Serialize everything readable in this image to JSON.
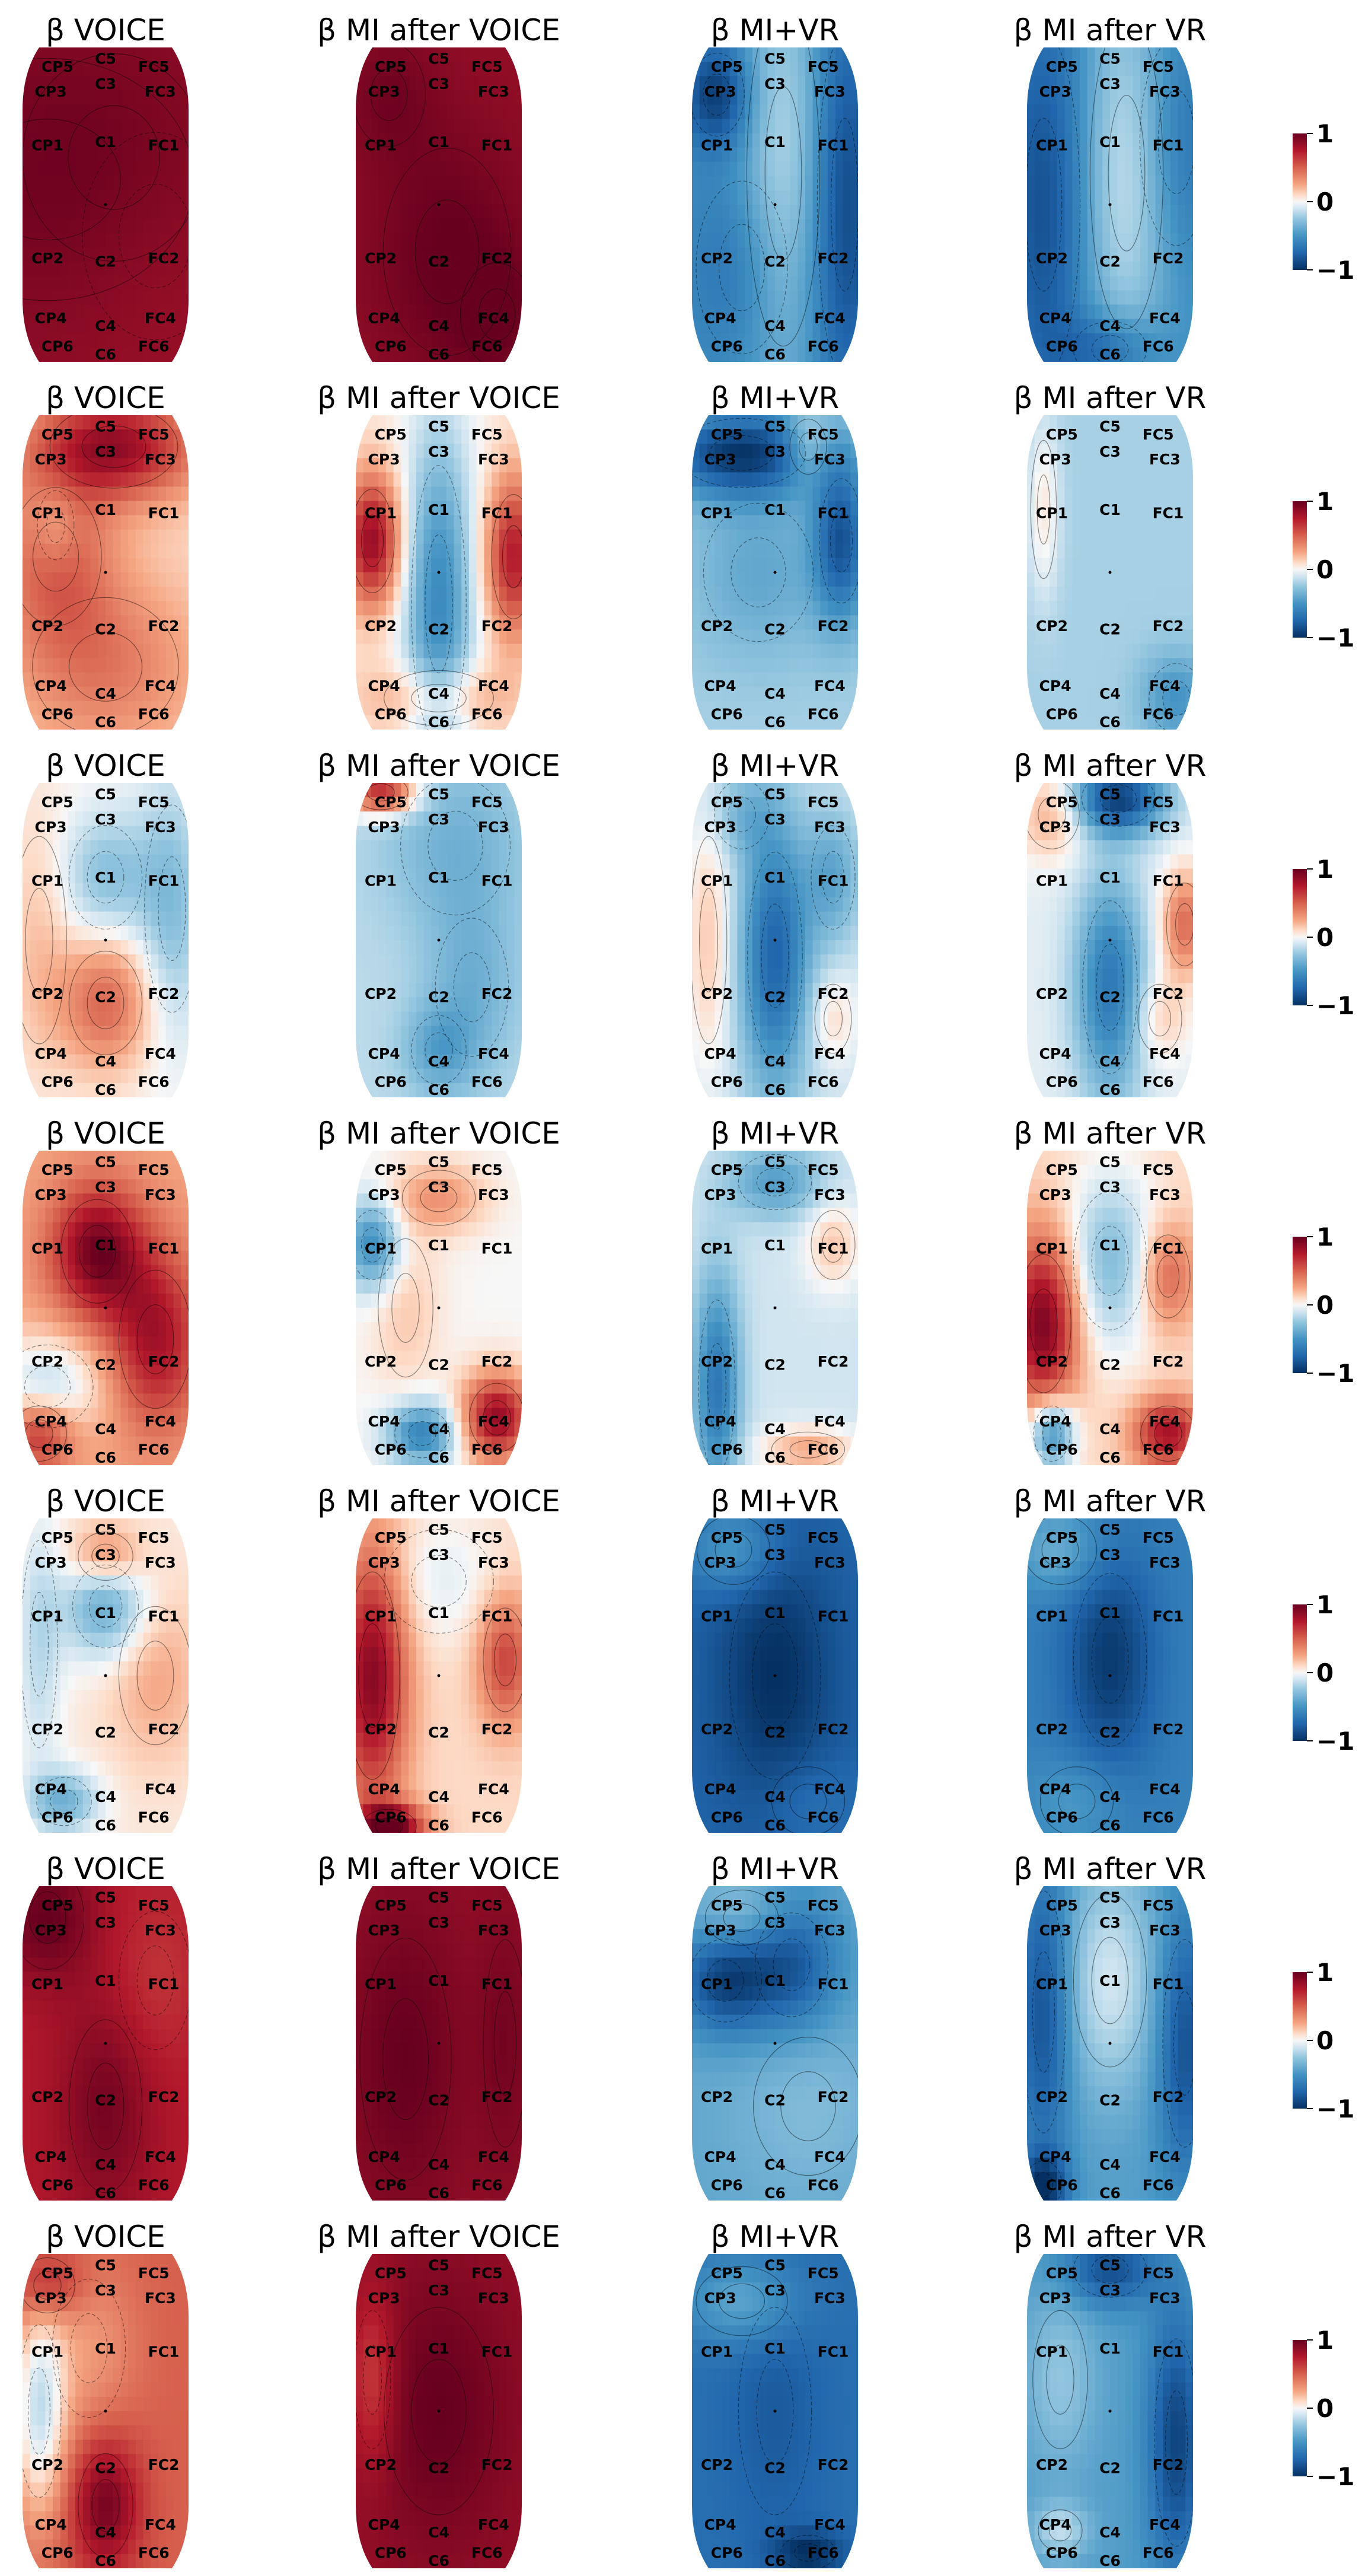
{
  "chart_data": {
    "type": "heatmap",
    "panel_titles": [
      "β VOICE",
      "β MI after VOICE",
      "β MI+VR",
      "β MI after VR"
    ],
    "rows": 7,
    "colorbar": {
      "colormap": "RdBu_r",
      "range": [
        -1,
        1
      ],
      "ticks": [
        "1",
        "0",
        "−1"
      ]
    },
    "electrodes": [
      {
        "label": "CP5",
        "u": 0.21,
        "v": 0.06
      },
      {
        "label": "C5",
        "u": 0.5,
        "v": 0.035
      },
      {
        "label": "FC5",
        "u": 0.79,
        "v": 0.06
      },
      {
        "label": "CP3",
        "u": 0.17,
        "v": 0.14
      },
      {
        "label": "C3",
        "u": 0.5,
        "v": 0.115
      },
      {
        "label": "FC3",
        "u": 0.83,
        "v": 0.14
      },
      {
        "label": "CP1",
        "u": 0.15,
        "v": 0.31
      },
      {
        "label": "C1",
        "u": 0.5,
        "v": 0.3
      },
      {
        "label": "FC1",
        "u": 0.85,
        "v": 0.31
      },
      {
        "label": "CP2",
        "u": 0.15,
        "v": 0.67
      },
      {
        "label": "C2",
        "u": 0.5,
        "v": 0.68
      },
      {
        "label": "FC2",
        "u": 0.85,
        "v": 0.67
      },
      {
        "label": "CP4",
        "u": 0.17,
        "v": 0.86
      },
      {
        "label": "C4",
        "u": 0.5,
        "v": 0.885
      },
      {
        "label": "FC4",
        "u": 0.83,
        "v": 0.86
      },
      {
        "label": "CP6",
        "u": 0.21,
        "v": 0.95
      },
      {
        "label": "C6",
        "u": 0.5,
        "v": 0.975
      },
      {
        "label": "FC6",
        "u": 0.79,
        "v": 0.95
      }
    ],
    "maps": [
      [
        {
          "base": 0.85,
          "blobs": [
            [
              0.15,
              0.42,
              0.8,
              0.35,
              0.1
            ],
            [
              0.55,
              0.35,
              0.5,
              0.3,
              0.05
            ],
            [
              0.8,
              0.6,
              0.4,
              0.3,
              -0.05
            ]
          ]
        },
        {
          "base": 0.85,
          "blobs": [
            [
              0.55,
              0.65,
              0.35,
              0.3,
              0.15
            ],
            [
              0.2,
              0.15,
              0.2,
              0.15,
              0.1
            ],
            [
              0.85,
              0.85,
              0.2,
              0.15,
              0.1
            ]
          ]
        },
        {
          "base": -0.5,
          "blobs": [
            [
              0.15,
              0.15,
              0.15,
              0.12,
              -0.45
            ],
            [
              0.55,
              0.4,
              0.2,
              0.5,
              0.35
            ],
            [
              0.92,
              0.5,
              0.15,
              0.5,
              -0.4
            ],
            [
              0.3,
              0.7,
              0.25,
              0.25,
              -0.2
            ]
          ]
        },
        {
          "base": -0.5,
          "blobs": [
            [
              0.1,
              0.5,
              0.2,
              0.5,
              -0.35
            ],
            [
              0.6,
              0.4,
              0.2,
              0.45,
              0.4
            ],
            [
              0.9,
              0.3,
              0.2,
              0.3,
              -0.2
            ],
            [
              0.5,
              0.96,
              0.2,
              0.08,
              -0.3
            ]
          ]
        }
      ],
      [
        {
          "base": 0.1,
          "blobs": [
            [
              0.55,
              0.1,
              0.35,
              0.12,
              0.75
            ],
            [
              0.2,
              0.45,
              0.25,
              0.2,
              0.4
            ],
            [
              0.5,
              0.8,
              0.4,
              0.2,
              0.3
            ],
            [
              0.2,
              0.35,
              0.1,
              0.1,
              -0.2
            ]
          ]
        },
        {
          "base": 0.05,
          "blobs": [
            [
              0.1,
              0.4,
              0.12,
              0.15,
              0.8
            ],
            [
              0.95,
              0.45,
              0.12,
              0.18,
              0.7
            ],
            [
              0.5,
              0.6,
              0.15,
              0.4,
              -0.6
            ],
            [
              0.5,
              0.9,
              0.3,
              0.08,
              0.3
            ]
          ]
        },
        {
          "base": -0.2,
          "blobs": [
            [
              0.3,
              0.12,
              0.35,
              0.1,
              -0.75
            ],
            [
              0.9,
              0.4,
              0.12,
              0.18,
              -0.6
            ],
            [
              0.4,
              0.5,
              0.3,
              0.2,
              -0.2
            ],
            [
              0.7,
              0.1,
              0.1,
              0.08,
              0.3
            ]
          ]
        },
        {
          "base": -0.2,
          "blobs": [
            [
              0.1,
              0.3,
              0.07,
              0.2,
              0.25
            ],
            [
              0.9,
              0.9,
              0.15,
              0.1,
              -0.3
            ]
          ]
        }
      ],
      [
        {
          "base": 0.02,
          "blobs": [
            [
              0.5,
              0.7,
              0.2,
              0.15,
              0.45
            ],
            [
              0.5,
              0.3,
              0.2,
              0.15,
              -0.3
            ],
            [
              0.9,
              0.4,
              0.15,
              0.3,
              -0.3
            ],
            [
              0.1,
              0.5,
              0.15,
              0.3,
              0.15
            ]
          ]
        },
        {
          "base": -0.15,
          "blobs": [
            [
              0.15,
              0.03,
              0.15,
              0.05,
              0.85
            ],
            [
              0.6,
              0.2,
              0.3,
              0.2,
              -0.2
            ],
            [
              0.7,
              0.65,
              0.2,
              0.2,
              -0.2
            ],
            [
              0.5,
              0.85,
              0.15,
              0.1,
              -0.25
            ]
          ]
        },
        {
          "base": -0.1,
          "blobs": [
            [
              0.5,
              0.55,
              0.15,
              0.3,
              -0.65
            ],
            [
              0.85,
              0.3,
              0.12,
              0.15,
              -0.3
            ],
            [
              0.1,
              0.5,
              0.1,
              0.3,
              0.25
            ],
            [
              0.3,
              0.1,
              0.15,
              0.1,
              -0.2
            ],
            [
              0.85,
              0.75,
              0.1,
              0.1,
              0.2
            ]
          ]
        },
        {
          "base": -0.05,
          "blobs": [
            [
              0.55,
              0.05,
              0.2,
              0.08,
              -0.85
            ],
            [
              0.5,
              0.65,
              0.15,
              0.25,
              -0.6
            ],
            [
              0.95,
              0.45,
              0.1,
              0.12,
              0.5
            ],
            [
              0.15,
              0.1,
              0.15,
              0.1,
              0.3
            ],
            [
              0.8,
              0.75,
              0.12,
              0.1,
              0.2
            ]
          ]
        }
      ],
      [
        {
          "base": 0.25,
          "blobs": [
            [
              0.45,
              0.32,
              0.2,
              0.15,
              0.7
            ],
            [
              0.8,
              0.6,
              0.2,
              0.2,
              0.55
            ],
            [
              0.15,
              0.75,
              0.25,
              0.12,
              -0.4
            ],
            [
              0.1,
              0.9,
              0.15,
              0.08,
              0.5
            ]
          ]
        },
        {
          "base": 0.0,
          "blobs": [
            [
              0.1,
              0.3,
              0.12,
              0.1,
              -0.55
            ],
            [
              0.85,
              0.85,
              0.15,
              0.1,
              0.85
            ],
            [
              0.4,
              0.9,
              0.15,
              0.07,
              -0.6
            ],
            [
              0.5,
              0.15,
              0.2,
              0.08,
              0.3
            ],
            [
              0.3,
              0.5,
              0.15,
              0.2,
              0.15
            ]
          ]
        },
        {
          "base": -0.1,
          "blobs": [
            [
              0.15,
              0.75,
              0.1,
              0.25,
              -0.55
            ],
            [
              0.5,
              0.1,
              0.2,
              0.08,
              -0.35
            ],
            [
              0.7,
              0.95,
              0.2,
              0.05,
              0.35
            ],
            [
              0.85,
              0.3,
              0.12,
              0.1,
              0.25
            ]
          ]
        },
        {
          "base": 0.1,
          "blobs": [
            [
              0.1,
              0.55,
              0.15,
              0.2,
              0.85
            ],
            [
              0.5,
              0.35,
              0.2,
              0.2,
              -0.4
            ],
            [
              0.15,
              0.9,
              0.1,
              0.08,
              -0.7
            ],
            [
              0.85,
              0.9,
              0.15,
              0.08,
              0.7
            ],
            [
              0.85,
              0.4,
              0.12,
              0.12,
              0.4
            ]
          ]
        }
      ],
      [
        {
          "base": 0.05,
          "blobs": [
            [
              0.5,
              0.28,
              0.18,
              0.12,
              -0.45
            ],
            [
              0.25,
              0.9,
              0.15,
              0.07,
              -0.4
            ],
            [
              0.5,
              0.12,
              0.15,
              0.07,
              0.35
            ],
            [
              0.8,
              0.5,
              0.2,
              0.2,
              0.2
            ],
            [
              0.1,
              0.4,
              0.1,
              0.3,
              -0.2
            ]
          ]
        },
        {
          "base": 0.1,
          "blobs": [
            [
              0.1,
              0.5,
              0.15,
              0.3,
              0.8
            ],
            [
              0.9,
              0.45,
              0.12,
              0.15,
              0.5
            ],
            [
              0.2,
              0.98,
              0.15,
              0.05,
              0.9
            ],
            [
              0.5,
              0.2,
              0.3,
              0.15,
              -0.15
            ]
          ]
        },
        {
          "base": -0.75,
          "blobs": [
            [
              0.5,
              0.5,
              0.25,
              0.3,
              -0.25
            ],
            [
              0.25,
              0.1,
              0.2,
              0.1,
              0.3
            ],
            [
              0.7,
              0.9,
              0.2,
              0.1,
              0.1
            ]
          ]
        },
        {
          "base": -0.6,
          "blobs": [
            [
              0.5,
              0.45,
              0.2,
              0.25,
              -0.35
            ],
            [
              0.2,
              0.1,
              0.2,
              0.1,
              0.25
            ],
            [
              0.3,
              0.9,
              0.2,
              0.1,
              0.15
            ]
          ]
        }
      ],
      [
        {
          "base": 0.75,
          "blobs": [
            [
              0.5,
              0.7,
              0.2,
              0.25,
              0.2
            ],
            [
              0.15,
              0.1,
              0.2,
              0.15,
              0.25
            ],
            [
              0.8,
              0.3,
              0.2,
              0.2,
              -0.1
            ]
          ]
        },
        {
          "base": 0.85,
          "blobs": [
            [
              0.3,
              0.55,
              0.25,
              0.35,
              0.15
            ],
            [
              0.9,
              0.5,
              0.12,
              0.3,
              0.1
            ]
          ]
        },
        {
          "base": -0.4,
          "blobs": [
            [
              0.2,
              0.3,
              0.2,
              0.12,
              -0.5
            ],
            [
              0.6,
              0.25,
              0.2,
              0.15,
              -0.4
            ],
            [
              0.3,
              0.1,
              0.2,
              0.08,
              0.2
            ],
            [
              0.7,
              0.7,
              0.3,
              0.2,
              0.1
            ]
          ]
        },
        {
          "base": -0.45,
          "blobs": [
            [
              0.1,
              0.4,
              0.12,
              0.35,
              -0.4
            ],
            [
              0.95,
              0.5,
              0.12,
              0.3,
              -0.4
            ],
            [
              0.5,
              0.3,
              0.2,
              0.25,
              0.35
            ],
            [
              0.1,
              0.95,
              0.1,
              0.07,
              -0.5
            ]
          ]
        }
      ],
      [
        {
          "base": 0.5,
          "blobs": [
            [
              0.1,
              0.5,
              0.12,
              0.25,
              -0.6
            ],
            [
              0.5,
              0.8,
              0.15,
              0.15,
              0.45
            ],
            [
              0.4,
              0.3,
              0.2,
              0.2,
              -0.2
            ],
            [
              0.15,
              0.1,
              0.15,
              0.08,
              0.3
            ]
          ]
        },
        {
          "base": 0.85,
          "blobs": [
            [
              0.5,
              0.5,
              0.3,
              0.3,
              0.15
            ],
            [
              0.1,
              0.4,
              0.1,
              0.2,
              -0.25
            ]
          ]
        },
        {
          "base": -0.7,
          "blobs": [
            [
              0.3,
              0.15,
              0.25,
              0.1,
              0.3
            ],
            [
              0.7,
              0.95,
              0.15,
              0.05,
              -0.3
            ],
            [
              0.5,
              0.5,
              0.2,
              0.3,
              -0.1
            ]
          ]
        },
        {
          "base": -0.45,
          "blobs": [
            [
              0.9,
              0.6,
              0.12,
              0.3,
              -0.45
            ],
            [
              0.5,
              0.05,
              0.2,
              0.08,
              -0.4
            ],
            [
              0.2,
              0.4,
              0.15,
              0.2,
              0.2
            ],
            [
              0.2,
              0.88,
              0.12,
              0.06,
              0.3
            ]
          ]
        }
      ]
    ]
  }
}
